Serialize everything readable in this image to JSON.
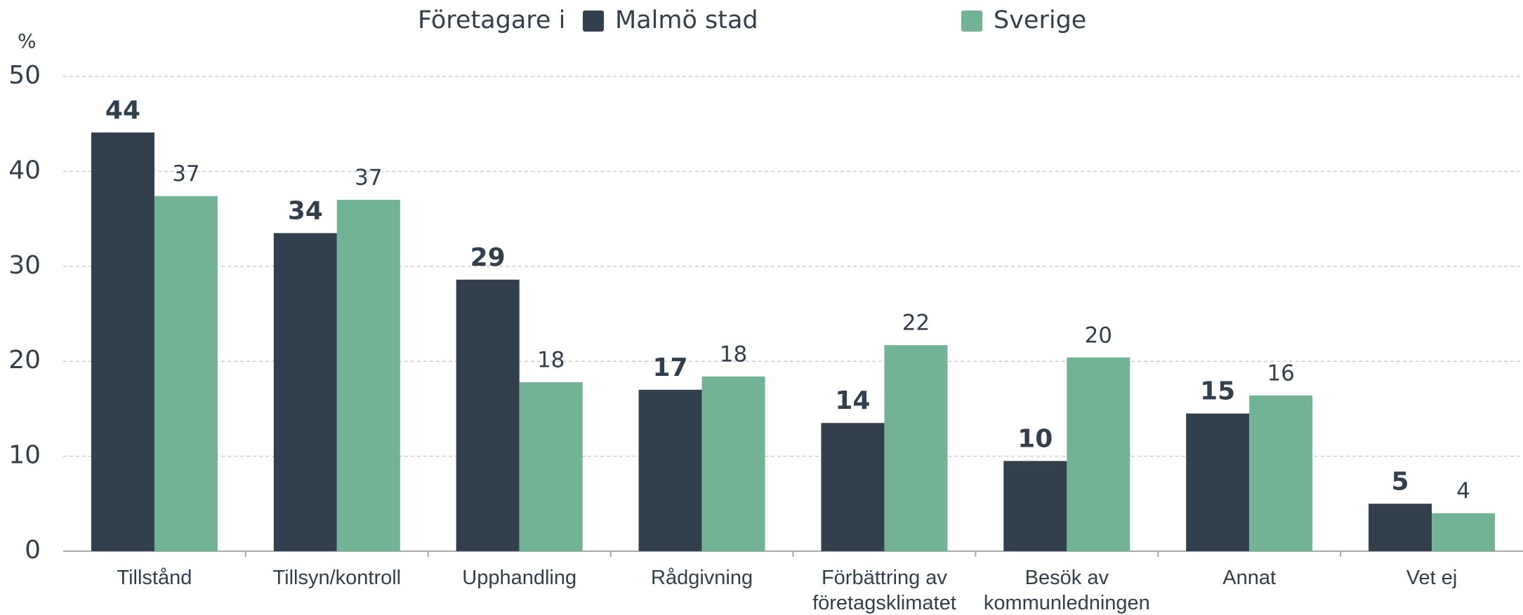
{
  "chart_data": {
    "type": "bar",
    "legend_title": "Företagare i",
    "ylabel": "%",
    "categories": [
      "Tillstånd",
      "Tillsyn/kontroll",
      "Upphandling",
      "Rådgivning",
      "Förbättring av företagsklimatet",
      "Besök av kommunledningen",
      "Annat",
      "Vet ej"
    ],
    "series": [
      {
        "name": "Malmö stad",
        "color": "#323f4c",
        "values": [
          44.1,
          33.5,
          28.6,
          17.0,
          13.5,
          9.5,
          14.5,
          5.0
        ],
        "value_labels": [
          "44",
          "34",
          "29",
          "17",
          "14",
          "10",
          "15",
          "5"
        ]
      },
      {
        "name": "Sverige",
        "color": "#72b396",
        "values": [
          37.4,
          37.0,
          17.8,
          18.4,
          21.7,
          20.4,
          16.4,
          4.0
        ],
        "value_labels": [
          "37",
          "37",
          "18",
          "18",
          "22",
          "20",
          "16",
          "4"
        ]
      }
    ],
    "ylim": [
      0,
      50
    ],
    "yticks": [
      0,
      10,
      20,
      30,
      40,
      50
    ],
    "grid": true,
    "legend": "top"
  }
}
